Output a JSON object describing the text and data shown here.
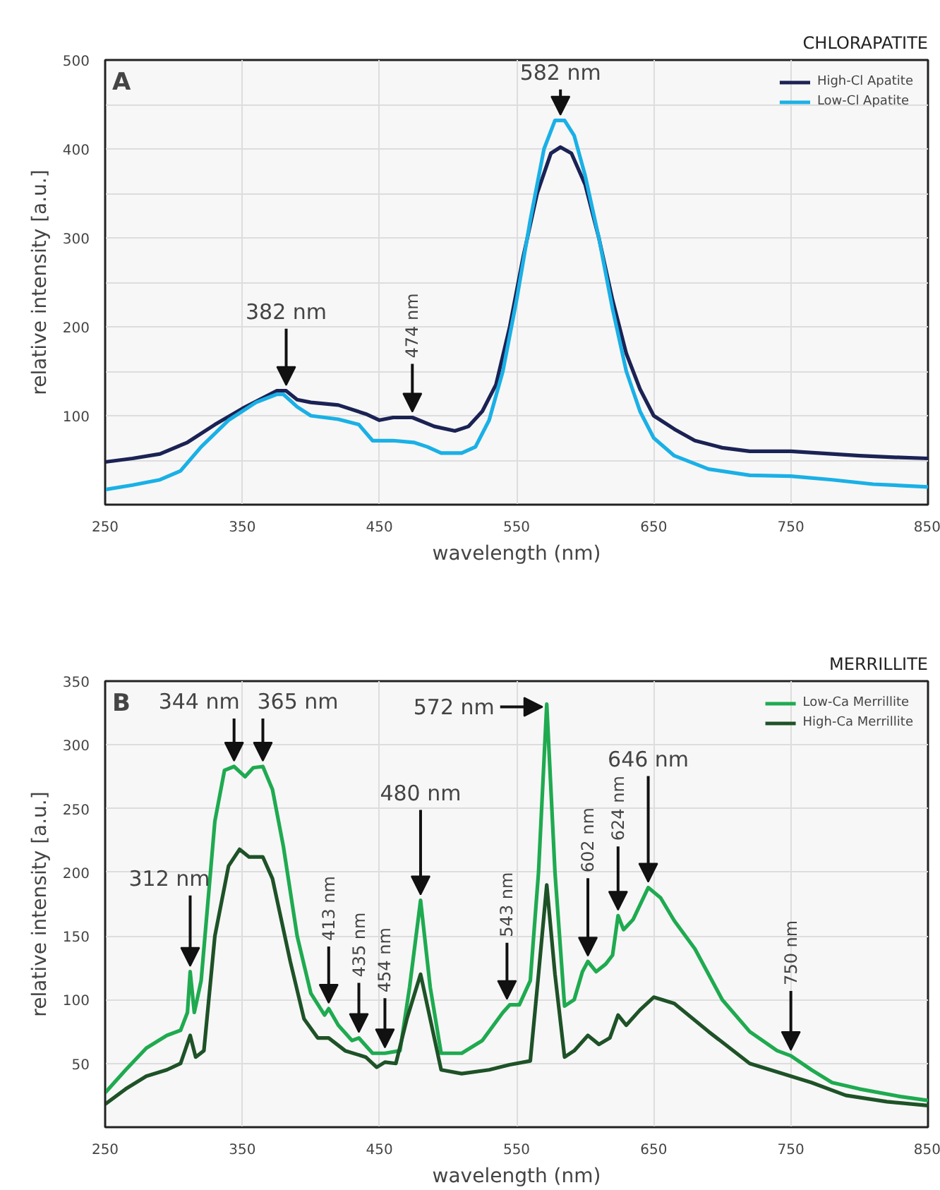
{
  "chart_data": [
    {
      "type": "line",
      "title": "CHLORAPATITE",
      "xlabel": "wavelength (nm)",
      "ylabel": "relative intensity [a.u.]",
      "annotations": [
        "A",
        {
          "text": "582 nm",
          "x": 582,
          "y": 432
        },
        {
          "text": "382 nm",
          "x": 382,
          "y": 128
        },
        {
          "text": "474 nm",
          "x": 474,
          "y": 98
        }
      ],
      "series": [
        {
          "name": "High-Cl Apatite",
          "color": "#1b2254",
          "x": [
            250,
            270,
            290,
            310,
            330,
            350,
            365,
            375,
            382,
            390,
            400,
            420,
            440,
            450,
            460,
            474,
            490,
            505,
            515,
            525,
            535,
            545,
            555,
            565,
            575,
            582,
            590,
            600,
            610,
            620,
            630,
            640,
            650,
            665,
            680,
            700,
            720,
            750,
            780,
            800,
            830,
            850
          ],
          "values": [
            48,
            52,
            57,
            70,
            90,
            108,
            120,
            128,
            128,
            118,
            115,
            112,
            102,
            95,
            98,
            98,
            88,
            83,
            88,
            105,
            135,
            200,
            280,
            350,
            395,
            402,
            395,
            360,
            300,
            230,
            170,
            130,
            100,
            85,
            72,
            64,
            60,
            60,
            57,
            55,
            53,
            52
          ]
        },
        {
          "name": "Low-Cl Apatite",
          "color": "#1ab0e6",
          "x": [
            250,
            270,
            290,
            305,
            320,
            340,
            360,
            375,
            380,
            390,
            400,
            420,
            435,
            445,
            460,
            475,
            485,
            495,
            510,
            520,
            530,
            540,
            550,
            560,
            570,
            578,
            585,
            592,
            600,
            610,
            620,
            630,
            640,
            650,
            665,
            690,
            720,
            750,
            780,
            810,
            850
          ],
          "values": [
            17,
            22,
            28,
            38,
            65,
            95,
            115,
            124,
            124,
            110,
            100,
            96,
            90,
            72,
            72,
            70,
            65,
            58,
            58,
            65,
            95,
            150,
            230,
            320,
            400,
            432,
            432,
            415,
            370,
            300,
            220,
            150,
            105,
            75,
            55,
            40,
            33,
            32,
            28,
            23,
            20
          ]
        }
      ],
      "xlim": [
        250,
        850
      ],
      "ylim": [
        0,
        500
      ],
      "xticks": [
        250,
        350,
        450,
        550,
        650,
        750,
        850
      ],
      "yticks": [
        {
          "value": 50,
          "label": null
        },
        100,
        {
          "value": 150,
          "label": null
        },
        200,
        {
          "value": 250,
          "label": null
        },
        300,
        {
          "value": 350,
          "label": null
        },
        400,
        {
          "value": 450,
          "label": null
        },
        500
      ],
      "grid": true,
      "legend": "top right"
    },
    {
      "type": "line",
      "title": "MERRILLITE",
      "xlabel": "wavelength (nm)",
      "ylabel": "relative intensity [a.u.]",
      "annotations": [
        "B",
        {
          "text": "312 nm",
          "x": 312,
          "y": 122
        },
        {
          "text": "344 nm",
          "x": 344,
          "y": 283
        },
        {
          "text": "365 nm",
          "x": 365,
          "y": 283
        },
        {
          "text": "413 nm",
          "x": 413,
          "y": 93
        },
        {
          "text": "435 nm",
          "x": 435,
          "y": 70
        },
        {
          "text": "454 nm",
          "x": 454,
          "y": 58
        },
        {
          "text": "480 nm",
          "x": 480,
          "y": 178
        },
        {
          "text": "543 nm",
          "x": 543,
          "y": 96
        },
        {
          "text": "572 nm",
          "x": 572,
          "y": 332
        },
        {
          "text": "602 nm",
          "x": 602,
          "y": 130
        },
        {
          "text": "624 nm",
          "x": 624,
          "y": 166
        },
        {
          "text": "646 nm",
          "x": 646,
          "y": 188
        },
        {
          "text": "750 nm",
          "x": 750,
          "y": 56
        }
      ],
      "series": [
        {
          "name": "Low-Ca Merrillite",
          "color": "#1faa50",
          "x": [
            250,
            265,
            280,
            295,
            305,
            310,
            312,
            315,
            320,
            330,
            337,
            344,
            352,
            358,
            365,
            372,
            380,
            390,
            400,
            410,
            413,
            420,
            430,
            435,
            445,
            454,
            465,
            472,
            480,
            487,
            495,
            510,
            525,
            540,
            545,
            552,
            560,
            566,
            572,
            578,
            585,
            592,
            598,
            602,
            608,
            615,
            620,
            624,
            628,
            635,
            646,
            655,
            665,
            680,
            700,
            720,
            740,
            750,
            765,
            780,
            800,
            830,
            850
          ],
          "values": [
            27,
            45,
            62,
            72,
            76,
            90,
            122,
            90,
            115,
            240,
            280,
            283,
            275,
            282,
            283,
            265,
            220,
            150,
            105,
            88,
            93,
            80,
            68,
            70,
            58,
            58,
            60,
            110,
            178,
            110,
            58,
            58,
            68,
            90,
            96,
            96,
            115,
            200,
            332,
            200,
            95,
            100,
            122,
            130,
            122,
            128,
            135,
            166,
            155,
            163,
            188,
            180,
            162,
            140,
            100,
            75,
            60,
            56,
            45,
            35,
            30,
            24,
            21
          ]
        },
        {
          "name": "High-Ca Merrillite",
          "color": "#1e5227",
          "x": [
            250,
            265,
            280,
            295,
            305,
            312,
            316,
            322,
            330,
            340,
            348,
            355,
            365,
            372,
            385,
            395,
            405,
            413,
            425,
            440,
            448,
            454,
            462,
            470,
            480,
            488,
            495,
            510,
            530,
            545,
            560,
            566,
            572,
            578,
            585,
            592,
            602,
            610,
            618,
            624,
            630,
            640,
            650,
            665,
            690,
            720,
            750,
            765,
            790,
            820,
            850
          ],
          "values": [
            18,
            30,
            40,
            45,
            50,
            72,
            55,
            60,
            150,
            205,
            218,
            212,
            212,
            195,
            130,
            85,
            70,
            70,
            60,
            55,
            47,
            51,
            50,
            85,
            120,
            80,
            45,
            42,
            45,
            49,
            52,
            120,
            190,
            120,
            55,
            60,
            72,
            65,
            70,
            88,
            80,
            92,
            102,
            97,
            75,
            50,
            40,
            35,
            25,
            20,
            17
          ]
        }
      ],
      "xlim": [
        250,
        850
      ],
      "ylim": [
        0,
        350
      ],
      "xticks": [
        250,
        350,
        450,
        550,
        650,
        750,
        850
      ],
      "yticks": [
        50,
        100,
        150,
        200,
        250,
        300,
        350
      ],
      "grid": true,
      "legend": "top right"
    }
  ]
}
